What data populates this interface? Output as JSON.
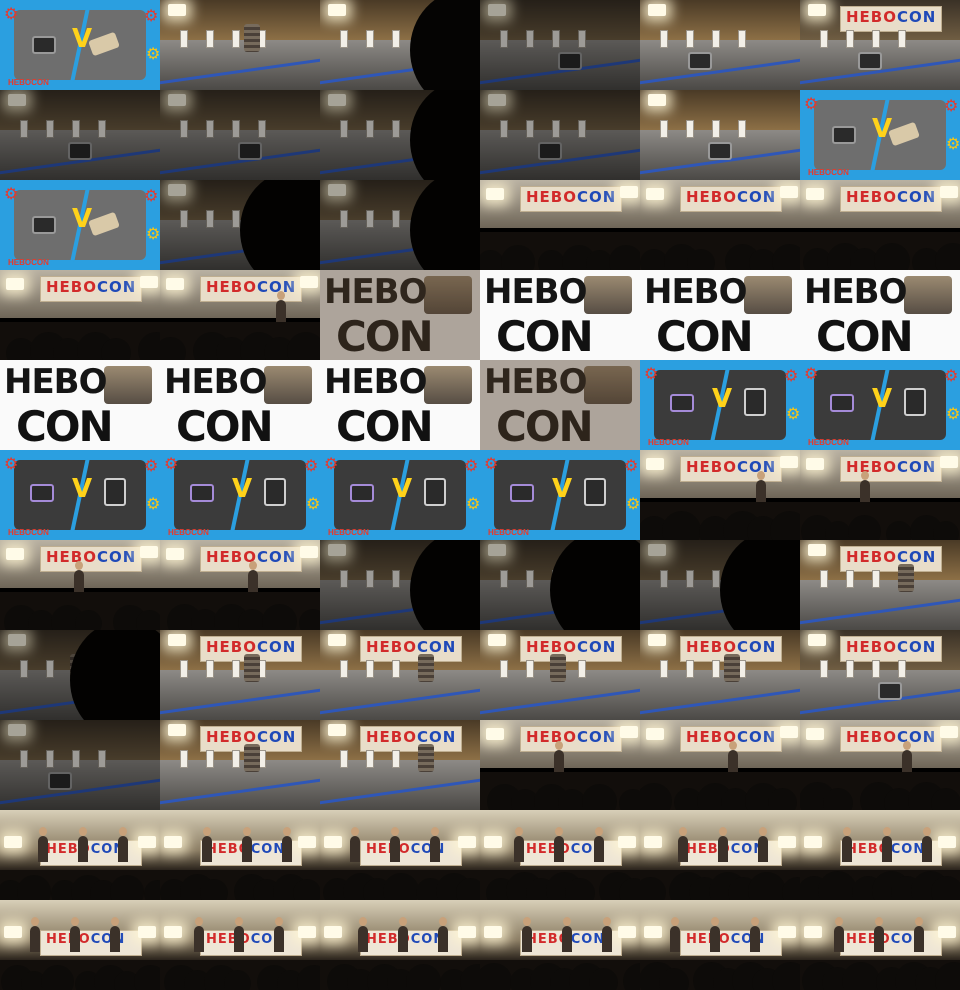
{
  "image": {
    "description_free": true,
    "banner_text": "HEBOCON",
    "title_card_top": "HEBO",
    "title_card_bottom": "CON",
    "poster_logo": "HEBOCON",
    "poster_vs": "V",
    "colors": {
      "poster_blue": "#2b9fe0",
      "banner_red": "#d22a2a",
      "banner_blue": "#1f49b8",
      "bolt_yellow": "#ffd21a",
      "gear_red": "#e33b2e",
      "table_edge_blue": "#2f57b8"
    },
    "grid": {
      "columns": 6,
      "rows": 11
    },
    "frames": [
      {
        "kind": "poster-arena"
      },
      {
        "kind": "arena-close"
      },
      {
        "kind": "arena-head"
      },
      {
        "kind": "table-dark"
      },
      {
        "kind": "table-warm"
      },
      {
        "kind": "table-banner"
      },
      {
        "kind": "table-dark"
      },
      {
        "kind": "table-dark"
      },
      {
        "kind": "table-head"
      },
      {
        "kind": "table-dark"
      },
      {
        "kind": "table-warm"
      },
      {
        "kind": "poster-arena"
      },
      {
        "kind": "poster-card"
      },
      {
        "kind": "table-head"
      },
      {
        "kind": "table-head"
      },
      {
        "kind": "hall"
      },
      {
        "kind": "hall"
      },
      {
        "kind": "hall"
      },
      {
        "kind": "hall"
      },
      {
        "kind": "hall-person"
      },
      {
        "kind": "title-fade"
      },
      {
        "kind": "title"
      },
      {
        "kind": "title"
      },
      {
        "kind": "title"
      },
      {
        "kind": "title"
      },
      {
        "kind": "title"
      },
      {
        "kind": "title"
      },
      {
        "kind": "title-fade"
      },
      {
        "kind": "poster-vs"
      },
      {
        "kind": "poster-vs"
      },
      {
        "kind": "poster-vs"
      },
      {
        "kind": "poster-vs"
      },
      {
        "kind": "poster-vs"
      },
      {
        "kind": "poster-vs"
      },
      {
        "kind": "hall-person"
      },
      {
        "kind": "hall-person"
      },
      {
        "kind": "hall-person"
      },
      {
        "kind": "hall-person"
      },
      {
        "kind": "table-head"
      },
      {
        "kind": "table-head"
      },
      {
        "kind": "table-head"
      },
      {
        "kind": "table-can"
      },
      {
        "kind": "table-can-dark"
      },
      {
        "kind": "table-can"
      },
      {
        "kind": "table-can"
      },
      {
        "kind": "table-can"
      },
      {
        "kind": "table-can"
      },
      {
        "kind": "table-banner"
      },
      {
        "kind": "table-dark"
      },
      {
        "kind": "table-can"
      },
      {
        "kind": "table-can"
      },
      {
        "kind": "hall-person"
      },
      {
        "kind": "hall-person"
      },
      {
        "kind": "hall-person"
      },
      {
        "kind": "crowd"
      },
      {
        "kind": "crowd"
      },
      {
        "kind": "crowd"
      },
      {
        "kind": "crowd"
      },
      {
        "kind": "crowd"
      },
      {
        "kind": "crowd"
      },
      {
        "kind": "crowd"
      },
      {
        "kind": "crowd"
      },
      {
        "kind": "crowd"
      },
      {
        "kind": "crowd"
      },
      {
        "kind": "crowd"
      },
      {
        "kind": "crowd"
      }
    ]
  }
}
